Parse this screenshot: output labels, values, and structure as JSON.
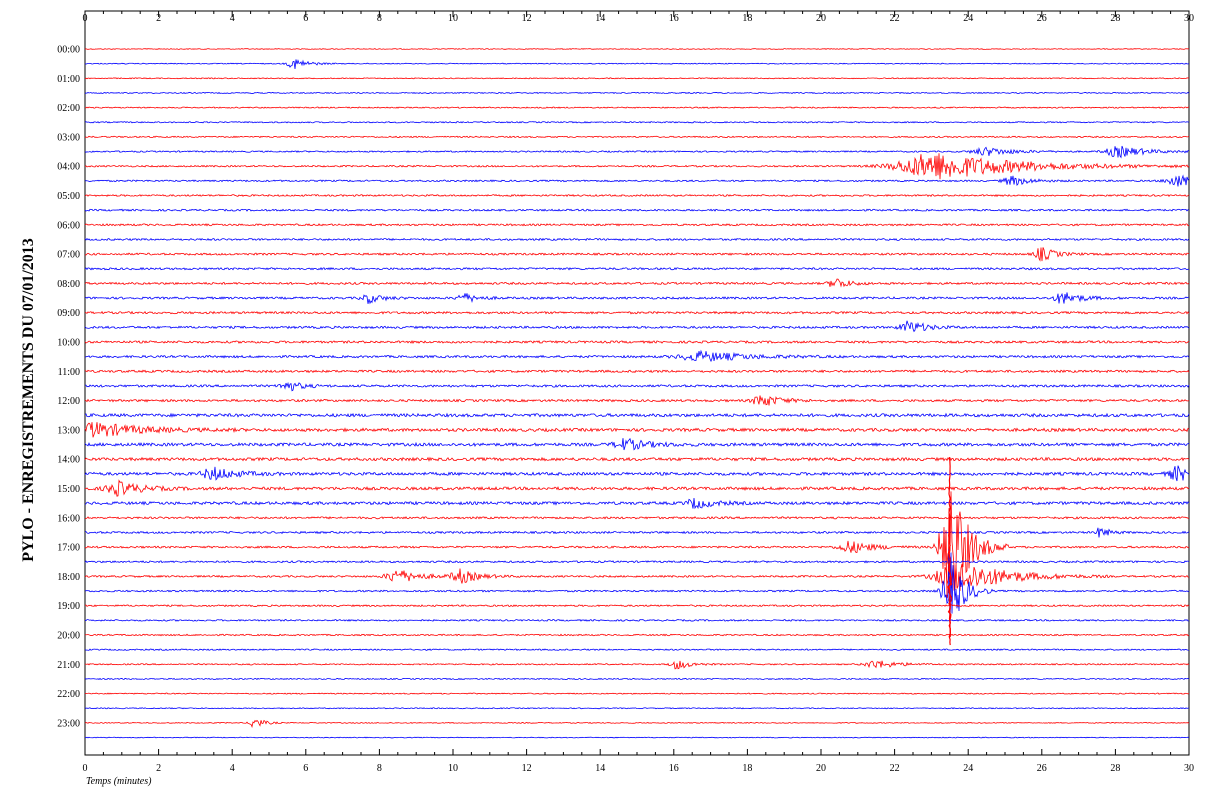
{
  "chart_data": {
    "type": "line",
    "title": "PYLO - ENREGISTREMENTS DU 07/01/2013",
    "xlabel": "Temps (minutes)",
    "ylabel": "",
    "xlim": [
      0,
      30
    ],
    "x_ticks": [
      0,
      2,
      4,
      6,
      8,
      10,
      12,
      14,
      16,
      18,
      20,
      22,
      24,
      26,
      28,
      30
    ],
    "hour_labels": [
      "00:00",
      "01:00",
      "02:00",
      "03:00",
      "04:00",
      "05:00",
      "06:00",
      "07:00",
      "08:00",
      "09:00",
      "10:00",
      "11:00",
      "12:00",
      "13:00",
      "14:00",
      "15:00",
      "16:00",
      "17:00",
      "18:00",
      "19:00",
      "20:00",
      "21:00",
      "22:00",
      "23:00"
    ],
    "trace_count": 48,
    "trace_colors": [
      "#ff0000",
      "#0000ff"
    ],
    "grid": false,
    "events": [
      {
        "trace": 1.5,
        "t": 5.7,
        "amp": 0.4,
        "dur": 0.3
      },
      {
        "trace": 7,
        "t": 24.5,
        "amp": 0.3,
        "dur": 0.6
      },
      {
        "trace": 7,
        "t": 28.1,
        "amp": 0.4,
        "dur": 0.6
      },
      {
        "trace": 8,
        "t": 23.2,
        "amp": 1.0,
        "dur": 1.8
      },
      {
        "trace": 9,
        "t": 25.2,
        "amp": 0.35,
        "dur": 0.4
      },
      {
        "trace": 9,
        "t": 29.7,
        "amp": 0.45,
        "dur": 0.5
      },
      {
        "trace": 14,
        "t": 26.0,
        "amp": 0.5,
        "dur": 0.3
      },
      {
        "trace": 16,
        "t": 20.4,
        "amp": 0.4,
        "dur": 0.3
      },
      {
        "trace": 17,
        "t": 7.7,
        "amp": 0.35,
        "dur": 0.3
      },
      {
        "trace": 17,
        "t": 10.3,
        "amp": 0.35,
        "dur": 0.3
      },
      {
        "trace": 17,
        "t": 26.6,
        "amp": 0.45,
        "dur": 0.4
      },
      {
        "trace": 19,
        "t": 22.4,
        "amp": 0.45,
        "dur": 0.4
      },
      {
        "trace": 21,
        "t": 16.8,
        "amp": 0.35,
        "dur": 1.0
      },
      {
        "trace": 23,
        "t": 5.5,
        "amp": 0.4,
        "dur": 0.3
      },
      {
        "trace": 24,
        "t": 18.4,
        "amp": 0.45,
        "dur": 0.4
      },
      {
        "trace": 26,
        "t": 0.3,
        "amp": 0.5,
        "dur": 1.0
      },
      {
        "trace": 27,
        "t": 14.7,
        "amp": 0.4,
        "dur": 0.5
      },
      {
        "trace": 29,
        "t": 3.5,
        "amp": 0.45,
        "dur": 0.5
      },
      {
        "trace": 29,
        "t": 29.7,
        "amp": 0.5,
        "dur": 0.4
      },
      {
        "trace": 30,
        "t": 0.9,
        "amp": 0.5,
        "dur": 0.5
      },
      {
        "trace": 31,
        "t": 16.6,
        "amp": 0.35,
        "dur": 0.4
      },
      {
        "trace": 33,
        "t": 27.6,
        "amp": 0.4,
        "dur": 0.2
      },
      {
        "trace": 34,
        "t": 20.8,
        "amp": 0.45,
        "dur": 0.5
      },
      {
        "trace": 34,
        "t": 23.5,
        "amp": 5.0,
        "dur": 0.4
      },
      {
        "trace": 36,
        "t": 8.5,
        "amp": 0.5,
        "dur": 0.5
      },
      {
        "trace": 36,
        "t": 10.2,
        "amp": 0.5,
        "dur": 0.4
      },
      {
        "trace": 36,
        "t": 23.8,
        "amp": 1.2,
        "dur": 1.0
      },
      {
        "trace": 37,
        "t": 23.5,
        "amp": 3.0,
        "dur": 0.3
      },
      {
        "trace": 42,
        "t": 16.1,
        "amp": 0.35,
        "dur": 0.3
      },
      {
        "trace": 42,
        "t": 21.5,
        "amp": 0.3,
        "dur": 0.5
      },
      {
        "trace": 46,
        "t": 4.6,
        "amp": 0.45,
        "dur": 0.2
      }
    ]
  }
}
